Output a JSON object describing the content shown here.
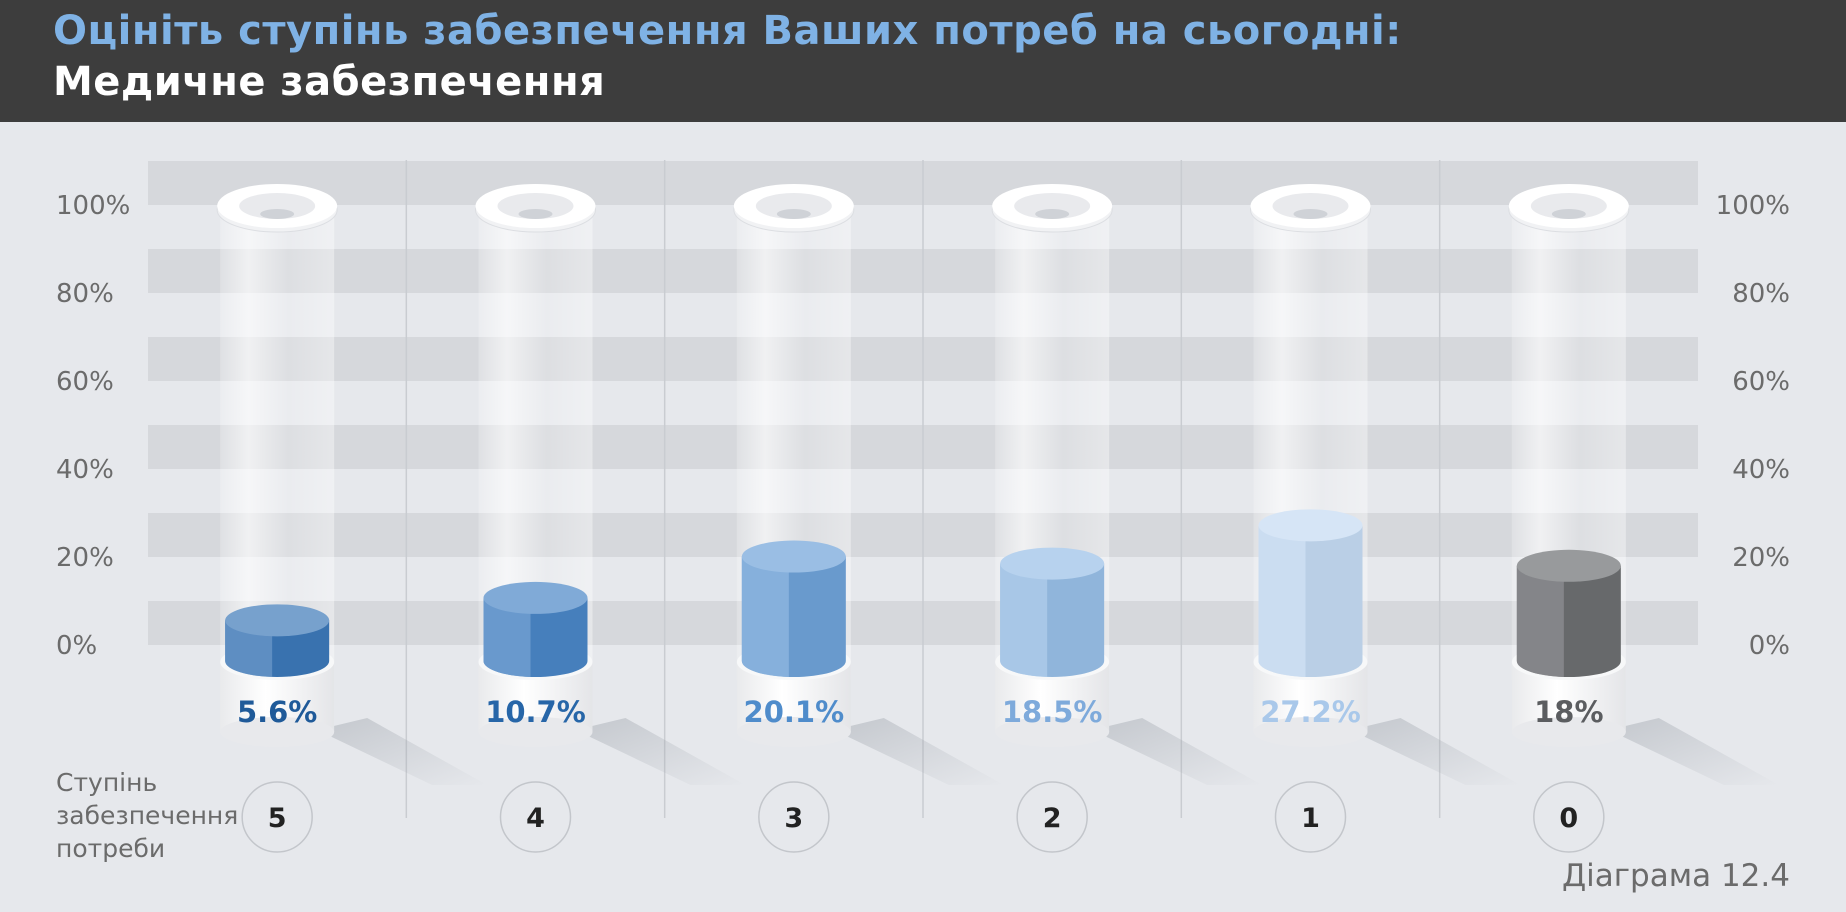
{
  "header": {
    "title_line1": "Оцініть ступінь забезпечення Ваших потреб на сьогодні:",
    "title_line2": "Медичне забезпечення"
  },
  "chart_data": {
    "type": "bar",
    "title": "Оцініть ступінь забезпечення Ваших потреб на сьогодні: Медичне забезпечення",
    "xlabel": "Ступінь забезпечення потреби",
    "ylabel": "",
    "ylim": [
      0,
      100
    ],
    "yticks": [
      "0%",
      "20%",
      "40%",
      "60%",
      "80%",
      "100%"
    ],
    "categories": [
      "5",
      "4",
      "3",
      "2",
      "1",
      "0"
    ],
    "values": [
      5.6,
      10.7,
      20.1,
      18.5,
      27.2,
      18
    ],
    "value_labels": [
      "5.6%",
      "10.7%",
      "20.1%",
      "18.5%",
      "27.2%",
      "18%"
    ],
    "colors": [
      "#3c78b8",
      "#4a86c6",
      "#6fa2d8",
      "#98bee6",
      "#c4daf2",
      "#6c6e71"
    ],
    "label_colors": [
      "#1f5a99",
      "#2766a8",
      "#4f8ccb",
      "#7eaadb",
      "#a9c8ea",
      "#5b5d60"
    ],
    "grid": true,
    "grid_style": "alternating bands"
  },
  "axis_label": {
    "line1": "Ступінь",
    "line2": "забезпечення",
    "line3": "потреби"
  },
  "caption": "Діаграма 12.4"
}
